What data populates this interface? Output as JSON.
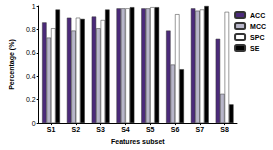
{
  "chart_data": {
    "type": "bar",
    "x_label": "Features subset",
    "y_label": "Percentage (%)",
    "categories": [
      "S1",
      "S2",
      "S3",
      "S4",
      "S5",
      "S6",
      "S7",
      "S8"
    ],
    "series": [
      {
        "name": "ACC",
        "color": "#4b2a7a",
        "values": [
          0.86,
          0.9,
          0.91,
          0.98,
          0.98,
          0.79,
          0.98,
          0.72
        ]
      },
      {
        "name": "MCC",
        "color": "#b8b6c9",
        "values": [
          0.73,
          0.79,
          0.81,
          0.98,
          0.98,
          0.5,
          0.96,
          0.25
        ]
      },
      {
        "name": "SPC",
        "color": "#ffffff",
        "values": [
          0.81,
          0.9,
          0.88,
          0.98,
          0.99,
          0.93,
          0.97,
          0.95
        ]
      },
      {
        "name": "SE",
        "color": "#000000",
        "values": [
          0.97,
          0.89,
          0.97,
          0.99,
          0.99,
          0.46,
          1.0,
          0.16
        ]
      }
    ],
    "ylim": [
      0,
      1
    ],
    "yticks": [
      0,
      0.2,
      0.4,
      0.6,
      0.8,
      1
    ],
    "grid": false,
    "legend": "right"
  }
}
